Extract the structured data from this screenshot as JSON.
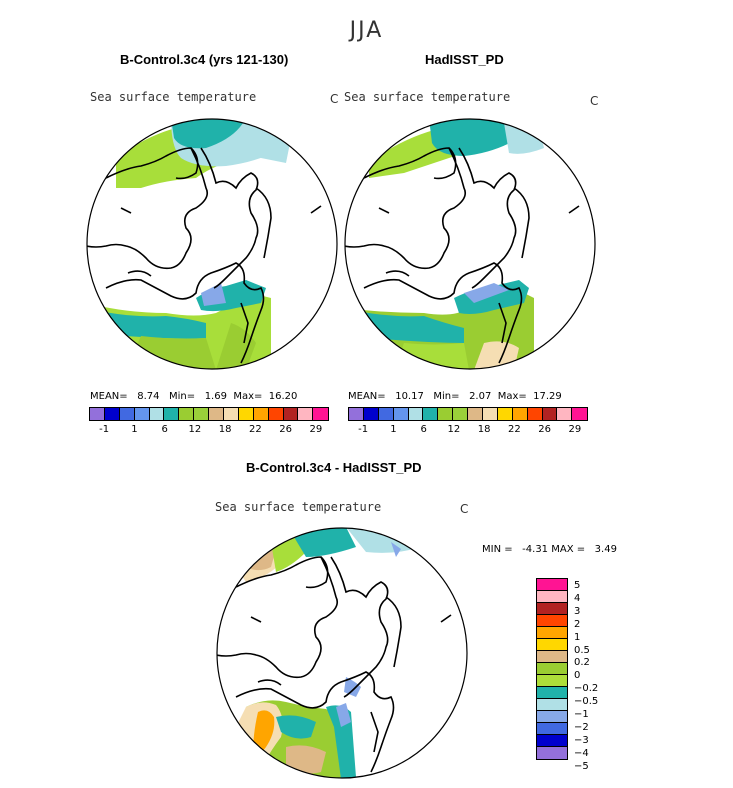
{
  "figure": {
    "title": "JJA"
  },
  "panels": [
    {
      "title": "B-Control.3c4 (yrs 121-130)",
      "variable": "Sea surface temperature",
      "units": "C",
      "mean_label": "MEAN=",
      "mean": "8.74",
      "min_label": "Min=",
      "min": "1.69",
      "max_label": "Max=",
      "max": "16.20"
    },
    {
      "title": "HadISST_PD",
      "variable": "Sea surface temperature",
      "units": "C",
      "mean_label": "MEAN=",
      "mean": "10.17",
      "min_label": "Min=",
      "min": "2.07",
      "max_label": "Max=",
      "max": "17.29"
    }
  ],
  "diff_panel": {
    "title": "B-Control.3c4 - HadISST_PD",
    "variable": "Sea surface temperature",
    "units": "C",
    "min_label": "MIN =",
    "min": "-4.31",
    "max_label": "MAX =",
    "max": "3.49"
  },
  "abs_colorbar": {
    "colors": [
      "#9370db",
      "#0000cd",
      "#4169e1",
      "#6495ed",
      "#b0e0e6",
      "#20b2aa",
      "#9acd32",
      "#9ad03a",
      "#deb887",
      "#f5deb3",
      "#ffd700",
      "#ffa500",
      "#ff4500",
      "#b22222",
      "#ffb6c1",
      "#ff1493"
    ],
    "tick_labels": [
      "-1",
      "1",
      "6",
      "12",
      "18",
      "22",
      "26",
      "29"
    ]
  },
  "diff_colorbar": {
    "colors_top_to_bottom": [
      "#ff1493",
      "#ffb6c1",
      "#b22222",
      "#ff4500",
      "#ffa500",
      "#ffd700",
      "#deb887",
      "#9acd32",
      "#adde3a",
      "#20b2aa",
      "#b0e0e6",
      "#87a8e8",
      "#4169e1",
      "#0000cd",
      "#9370db"
    ],
    "labels_top_to_bottom": [
      "5",
      "4",
      "3",
      "2",
      "1",
      "0.5",
      "0.2",
      "0",
      "−0.2",
      "−0.5",
      "−1",
      "−2",
      "−3",
      "−4",
      "−5"
    ]
  },
  "map_colors": {
    "land_outline": "#000000",
    "ocean_blank": "#ffffff",
    "lightgreen": "#a8de3a",
    "olive": "#9acd32",
    "teal": "#20b2aa",
    "lightcyan": "#b0e0e6",
    "lightblue": "#87a8e8",
    "tan": "#deb887",
    "wheat": "#f5deb3",
    "orange": "#ffa500",
    "blue": "#4169e1"
  }
}
